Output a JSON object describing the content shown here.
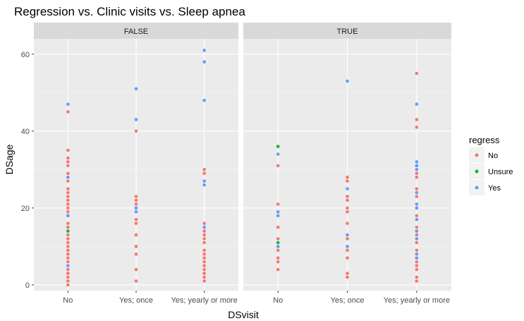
{
  "chart_data": {
    "type": "scatter",
    "title": "Regression vs. Clinic visits vs. Sleep apnea",
    "xlabel": "DSvisit",
    "ylabel": "DSage",
    "categories": [
      "No",
      "Yes; once",
      "Yes; yearly or more"
    ],
    "y_ticks": [
      0,
      20,
      40,
      60
    ],
    "ylim": [
      -1.5,
      64
    ],
    "grid": true,
    "legend": {
      "title": "regress",
      "placement": "right",
      "entries": [
        {
          "name": "No",
          "color": "#F8766D"
        },
        {
          "name": "Unsure",
          "color": "#00BA38"
        },
        {
          "name": "Yes",
          "color": "#619CFF"
        }
      ]
    },
    "panels": [
      {
        "label": "FALSE",
        "series": [
          {
            "name": "No",
            "points": [
              [
                "No",
                45
              ],
              [
                "No",
                35
              ],
              [
                "No",
                33
              ],
              [
                "No",
                32
              ],
              [
                "No",
                31
              ],
              [
                "No",
                29
              ],
              [
                "No",
                27
              ],
              [
                "No",
                25
              ],
              [
                "No",
                24
              ],
              [
                "No",
                23
              ],
              [
                "No",
                22
              ],
              [
                "No",
                21
              ],
              [
                "No",
                20
              ],
              [
                "No",
                19
              ],
              [
                "No",
                18
              ],
              [
                "No",
                16
              ],
              [
                "No",
                15
              ],
              [
                "No",
                13
              ],
              [
                "No",
                12
              ],
              [
                "No",
                11
              ],
              [
                "No",
                10
              ],
              [
                "No",
                9
              ],
              [
                "No",
                8
              ],
              [
                "No",
                7
              ],
              [
                "No",
                6
              ],
              [
                "No",
                4
              ],
              [
                "No",
                3
              ],
              [
                "No",
                2
              ],
              [
                "No",
                1
              ],
              [
                "No",
                0
              ],
              [
                "Yes; once",
                40
              ],
              [
                "Yes; once",
                23
              ],
              [
                "Yes; once",
                22
              ],
              [
                "Yes; once",
                21
              ],
              [
                "Yes; once",
                20
              ],
              [
                "Yes; once",
                17
              ],
              [
                "Yes; once",
                16
              ],
              [
                "Yes; once",
                13
              ],
              [
                "Yes; once",
                10
              ],
              [
                "Yes; once",
                8
              ],
              [
                "Yes; once",
                4
              ],
              [
                "Yes; once",
                1
              ],
              [
                "Yes; yearly or more",
                30
              ],
              [
                "Yes; yearly or more",
                29
              ],
              [
                "Yes; yearly or more",
                16
              ],
              [
                "Yes; yearly or more",
                14
              ],
              [
                "Yes; yearly or more",
                13
              ],
              [
                "Yes; yearly or more",
                12
              ],
              [
                "Yes; yearly or more",
                11
              ],
              [
                "Yes; yearly or more",
                9
              ],
              [
                "Yes; yearly or more",
                8
              ],
              [
                "Yes; yearly or more",
                7
              ],
              [
                "Yes; yearly or more",
                6
              ],
              [
                "Yes; yearly or more",
                5
              ],
              [
                "Yes; yearly or more",
                4
              ],
              [
                "Yes; yearly or more",
                3
              ],
              [
                "Yes; yearly or more",
                2
              ],
              [
                "Yes; yearly or more",
                1
              ]
            ]
          },
          {
            "name": "Unsure",
            "points": [
              [
                "No",
                14
              ]
            ]
          },
          {
            "name": "Yes",
            "points": [
              [
                "No",
                47
              ],
              [
                "No",
                28
              ],
              [
                "No",
                18
              ],
              [
                "No",
                5
              ],
              [
                "Yes; once",
                51
              ],
              [
                "Yes; once",
                43
              ],
              [
                "Yes; once",
                20
              ],
              [
                "Yes; once",
                19
              ],
              [
                "Yes; yearly or more",
                61
              ],
              [
                "Yes; yearly or more",
                58
              ],
              [
                "Yes; yearly or more",
                48
              ],
              [
                "Yes; yearly or more",
                27
              ],
              [
                "Yes; yearly or more",
                26
              ],
              [
                "Yes; yearly or more",
                15
              ]
            ]
          }
        ]
      },
      {
        "label": "TRUE",
        "series": [
          {
            "name": "No",
            "points": [
              [
                "No",
                31
              ],
              [
                "No",
                21
              ],
              [
                "No",
                15
              ],
              [
                "No",
                12
              ],
              [
                "No",
                10
              ],
              [
                "No",
                9
              ],
              [
                "No",
                7
              ],
              [
                "No",
                6
              ],
              [
                "No",
                4
              ],
              [
                "Yes; once",
                28
              ],
              [
                "Yes; once",
                27
              ],
              [
                "Yes; once",
                23
              ],
              [
                "Yes; once",
                22
              ],
              [
                "Yes; once",
                20
              ],
              [
                "Yes; once",
                19
              ],
              [
                "Yes; once",
                16
              ],
              [
                "Yes; once",
                12
              ],
              [
                "Yes; once",
                9
              ],
              [
                "Yes; once",
                7
              ],
              [
                "Yes; once",
                3
              ],
              [
                "Yes; once",
                2
              ],
              [
                "Yes; yearly or more",
                55
              ],
              [
                "Yes; yearly or more",
                43
              ],
              [
                "Yes; yearly or more",
                41
              ],
              [
                "Yes; yearly or more",
                31
              ],
              [
                "Yes; yearly or more",
                29
              ],
              [
                "Yes; yearly or more",
                28
              ],
              [
                "Yes; yearly or more",
                25
              ],
              [
                "Yes; yearly or more",
                23
              ],
              [
                "Yes; yearly or more",
                20
              ],
              [
                "Yes; yearly or more",
                18
              ],
              [
                "Yes; yearly or more",
                15
              ],
              [
                "Yes; yearly or more",
                14
              ],
              [
                "Yes; yearly or more",
                13
              ],
              [
                "Yes; yearly or more",
                11
              ],
              [
                "Yes; yearly or more",
                9
              ],
              [
                "Yes; yearly or more",
                7
              ],
              [
                "Yes; yearly or more",
                6
              ],
              [
                "Yes; yearly or more",
                5
              ],
              [
                "Yes; yearly or more",
                4
              ],
              [
                "Yes; yearly or more",
                2
              ],
              [
                "Yes; yearly or more",
                1
              ]
            ]
          },
          {
            "name": "Unsure",
            "points": [
              [
                "No",
                36
              ],
              [
                "No",
                11
              ]
            ]
          },
          {
            "name": "Yes",
            "points": [
              [
                "No",
                34
              ],
              [
                "No",
                19
              ],
              [
                "No",
                18
              ],
              [
                "No",
                10
              ],
              [
                "Yes; once",
                53
              ],
              [
                "Yes; once",
                25
              ],
              [
                "Yes; once",
                13
              ],
              [
                "Yes; once",
                10
              ],
              [
                "Yes; yearly or more",
                47
              ],
              [
                "Yes; yearly or more",
                32
              ],
              [
                "Yes; yearly or more",
                31
              ],
              [
                "Yes; yearly or more",
                30
              ],
              [
                "Yes; yearly or more",
                24
              ],
              [
                "Yes; yearly or more",
                21
              ],
              [
                "Yes; yearly or more",
                20
              ],
              [
                "Yes; yearly or more",
                17
              ],
              [
                "Yes; yearly or more",
                14
              ],
              [
                "Yes; yearly or more",
                12
              ],
              [
                "Yes; yearly or more",
                8
              ],
              [
                "Yes; yearly or more",
                7
              ]
            ]
          }
        ]
      }
    ]
  }
}
